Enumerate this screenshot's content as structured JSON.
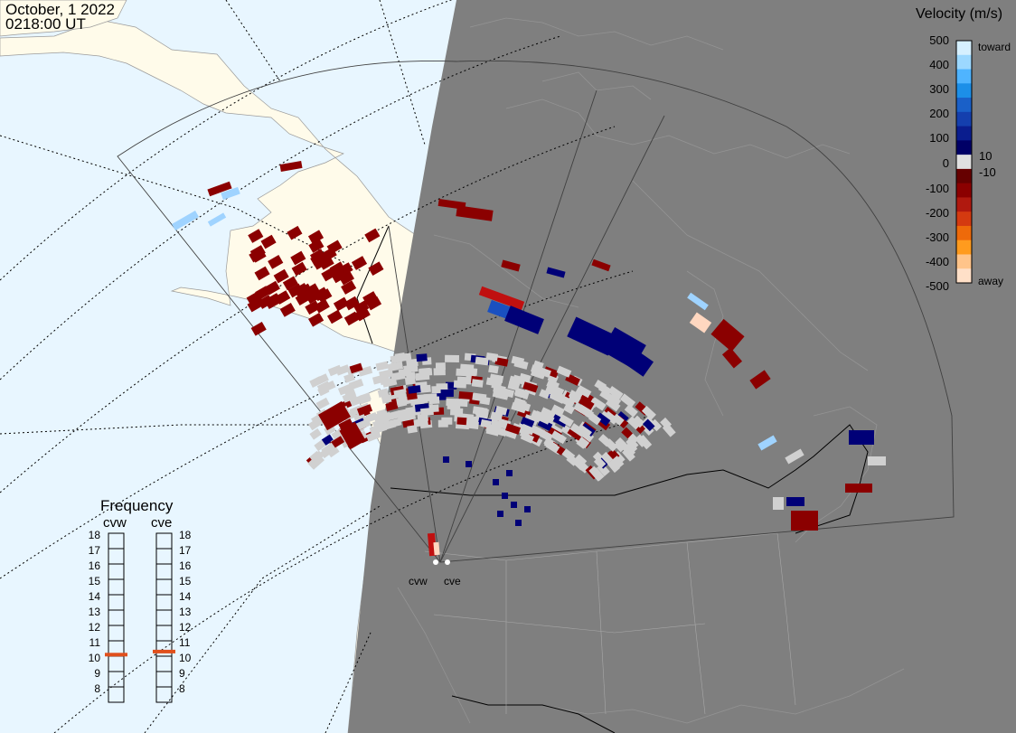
{
  "header": {
    "date": "October, 1 2022",
    "time": "0218:00 UT"
  },
  "colorbar": {
    "title": "Velocity (m/s)",
    "ticks": [
      "500",
      "400",
      "300",
      "200",
      "100",
      "10",
      "0",
      "-10",
      "-100",
      "-200",
      "-300",
      "-400",
      "-500"
    ],
    "label_toward": "toward",
    "label_away": "away",
    "colors": [
      "#d6f0ff",
      "#9cd8ff",
      "#4fb4ff",
      "#1c8fe8",
      "#1a60c8",
      "#143fae",
      "#0a1d8e",
      "#000066",
      "#e0e0e0",
      "#660000",
      "#8b0000",
      "#b0190f",
      "#d43a10",
      "#ee6a0a",
      "#ff9b1e",
      "#ffc48a",
      "#ffe0c8"
    ]
  },
  "frequency_panel": {
    "title": "Frequency",
    "radars": [
      "cvw",
      "cve"
    ],
    "levels": [
      "18",
      "17",
      "16",
      "15",
      "14",
      "13",
      "12",
      "11",
      "10",
      "9",
      "8"
    ],
    "current_mhz": {
      "cvw": 10.6,
      "cve": 10.8
    }
  },
  "radar_labels": [
    "cvw",
    "cve"
  ],
  "theme": {
    "ocean": "#e8f6ff",
    "land": "#fffbea",
    "night": "#7f7f7f",
    "marker": "#e0501c"
  }
}
